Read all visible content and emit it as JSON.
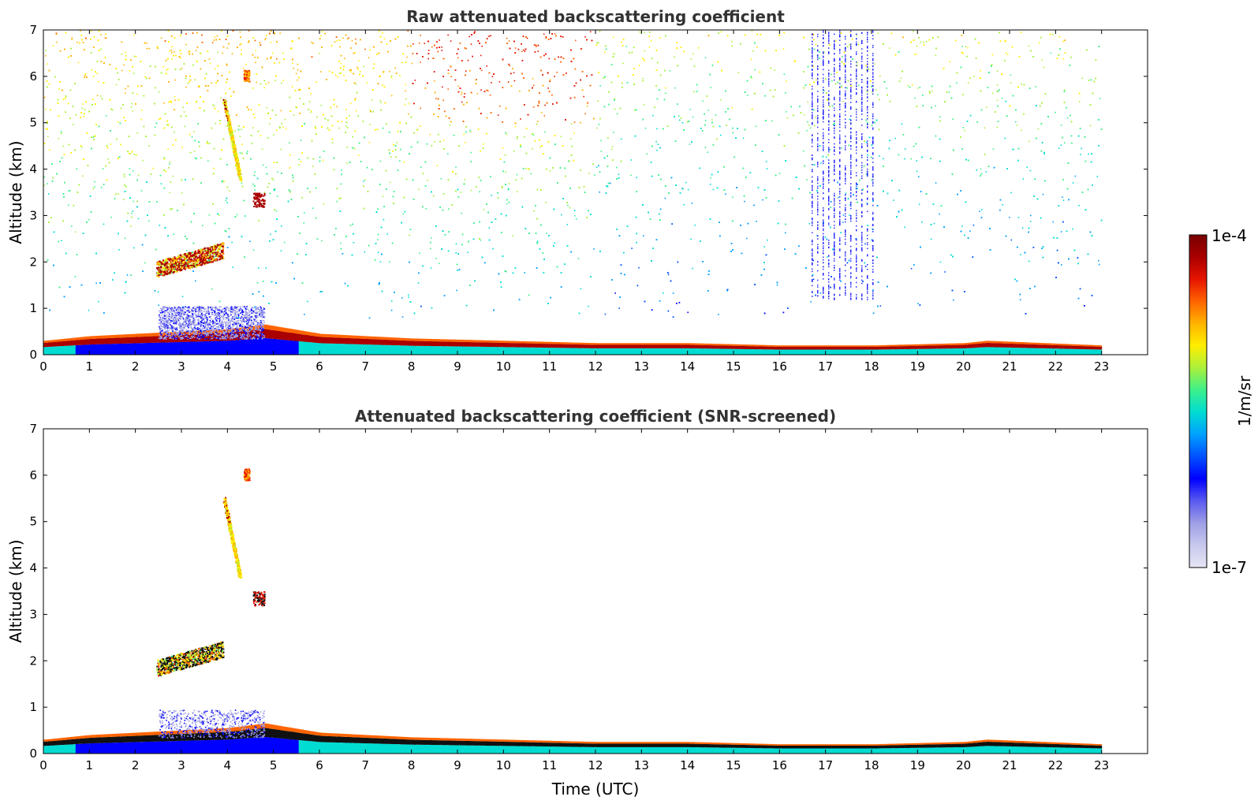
{
  "chart_data": [
    {
      "type": "heatmap",
      "title": "Raw attenuated backscattering coefficient",
      "xlabel": "",
      "ylabel": "Altitude (km)",
      "xlim": [
        0,
        24
      ],
      "ylim": [
        0,
        7
      ],
      "x_ticks": [
        "0",
        "1",
        "2",
        "3",
        "4",
        "5",
        "6",
        "7",
        "8",
        "9",
        "10",
        "11",
        "12",
        "13",
        "14",
        "15",
        "16",
        "17",
        "18",
        "19",
        "20",
        "21",
        "22",
        "23"
      ],
      "y_ticks": [
        "0",
        "1",
        "2",
        "3",
        "4",
        "5",
        "6",
        "7"
      ],
      "data_end_hour": 23,
      "boundary_layer_top_km": [
        {
          "t": 0,
          "h": 0.3
        },
        {
          "t": 1,
          "h": 0.4
        },
        {
          "t": 2,
          "h": 0.45
        },
        {
          "t": 3,
          "h": 0.5
        },
        {
          "t": 4,
          "h": 0.55
        },
        {
          "t": 4.8,
          "h": 0.65
        },
        {
          "t": 6,
          "h": 0.45
        },
        {
          "t": 8,
          "h": 0.35
        },
        {
          "t": 10,
          "h": 0.3
        },
        {
          "t": 12,
          "h": 0.25
        },
        {
          "t": 14,
          "h": 0.25
        },
        {
          "t": 16,
          "h": 0.2
        },
        {
          "t": 18,
          "h": 0.2
        },
        {
          "t": 20,
          "h": 0.25
        },
        {
          "t": 20.5,
          "h": 0.3
        },
        {
          "t": 23,
          "h": 0.2
        }
      ],
      "cloud_features": [
        {
          "t_start": 2.5,
          "t_end": 3.9,
          "alt_km": 2.0,
          "note": "aerosol layer ~2 km"
        },
        {
          "t_start": 3.9,
          "t_end": 4.3,
          "alt_km_top": 5.5,
          "alt_km_bottom": 3.8,
          "note": "falling streak"
        },
        {
          "t_start": 4.3,
          "t_end": 4.5,
          "alt_km": 6.0
        },
        {
          "t_start": 4.5,
          "t_end": 4.8,
          "alt_km": 3.3
        }
      ],
      "noise": "dense random background noise from ~1 km to 7 km, strongest 8–12 UTC"
    },
    {
      "type": "heatmap",
      "title": "Attenuated backscattering coefficient (SNR-screened)",
      "xlabel": "Time (UTC)",
      "ylabel": "Altitude (km)",
      "xlim": [
        0,
        24
      ],
      "ylim": [
        0,
        7
      ],
      "x_ticks": [
        "0",
        "1",
        "2",
        "3",
        "4",
        "5",
        "6",
        "7",
        "8",
        "9",
        "10",
        "11",
        "12",
        "13",
        "14",
        "15",
        "16",
        "17",
        "18",
        "19",
        "20",
        "21",
        "22",
        "23"
      ],
      "y_ticks": [
        "0",
        "1",
        "2",
        "3",
        "4",
        "5",
        "6",
        "7"
      ],
      "data_end_hour": 23,
      "noise": "none (screened)"
    }
  ],
  "colorbar": {
    "label": "1/m/sr",
    "max_label": "1e-4",
    "min_label": "1e-7",
    "scale": "log",
    "colormap": [
      "#e6e6f5",
      "#c8c8ee",
      "#9f9fe6",
      "#5a5af0",
      "#0000ff",
      "#0050ff",
      "#00a0ff",
      "#00dcd2",
      "#3cf08c",
      "#aaf03c",
      "#ffee00",
      "#ffb400",
      "#ff6400",
      "#e61400",
      "#aa0000",
      "#780000"
    ]
  }
}
